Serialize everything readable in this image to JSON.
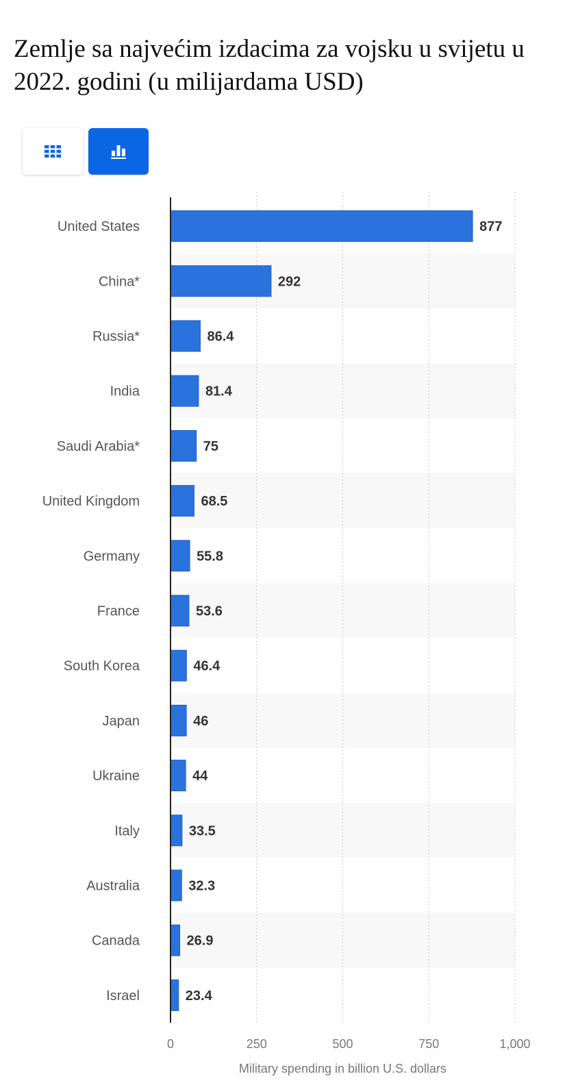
{
  "page": {
    "title": "Zemlje sa najvećim izdacima za vojsku u svijetu u 2022. godini (u milijardama USD)"
  },
  "toggles": [
    {
      "icon": "table-grid-icon",
      "active": false
    },
    {
      "icon": "bar-chart-icon",
      "active": true
    }
  ],
  "colors": {
    "bar": "#2a72de",
    "bar_stroke": "#1f5fc2",
    "accent": "#0b66e4",
    "stripe": "#f8f8f8"
  },
  "chart_data": {
    "type": "bar",
    "orientation": "horizontal",
    "categories": [
      "United States",
      "China*",
      "Russia*",
      "India",
      "Saudi Arabia*",
      "United Kingdom",
      "Germany",
      "France",
      "South Korea",
      "Japan",
      "Ukraine",
      "Italy",
      "Australia",
      "Canada",
      "Israel"
    ],
    "values": [
      877,
      292,
      86.4,
      81.4,
      75,
      68.5,
      55.8,
      53.6,
      46.4,
      46,
      44,
      33.5,
      32.3,
      26.9,
      23.4
    ],
    "value_labels": [
      "877",
      "292",
      "86.4",
      "81.4",
      "75",
      "68.5",
      "55.8",
      "53.6",
      "46.4",
      "46",
      "44",
      "33.5",
      "32.3",
      "26.9",
      "23.4"
    ],
    "title": "",
    "xlabel": "Military spending in billion U.S. dollars",
    "ylabel": "",
    "xlim": [
      0,
      1000
    ],
    "ticks": [
      0,
      250,
      500,
      750,
      1000
    ],
    "tick_labels": [
      "0",
      "250",
      "500",
      "750",
      "1,000"
    ],
    "grid": true
  }
}
